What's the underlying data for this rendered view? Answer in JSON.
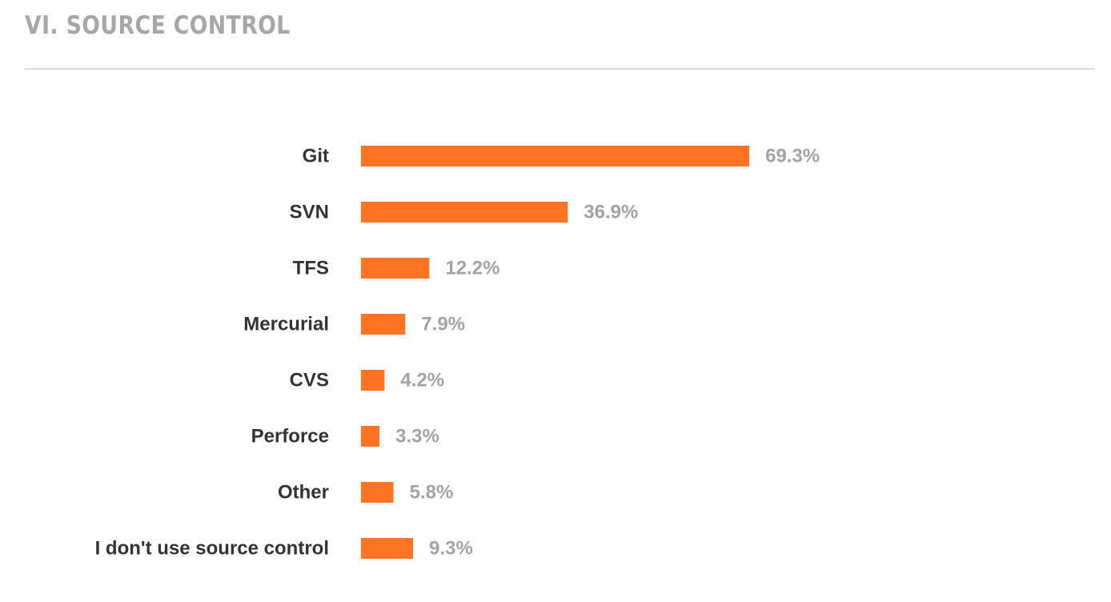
{
  "header": {
    "title": "VI. SOURCE CONTROL"
  },
  "colors": {
    "bar": "#ff7324",
    "category_text": "#333333",
    "value_text": "#a3a3a3",
    "title_text": "#a7a7a7",
    "divider": "#dcdcdc"
  },
  "chart_data": {
    "type": "bar",
    "orientation": "horizontal",
    "categories": [
      "Git",
      "SVN",
      "TFS",
      "Mercurial",
      "CVS",
      "Perforce",
      "Other",
      "I don't use source control"
    ],
    "values": [
      69.3,
      36.9,
      12.2,
      7.9,
      4.2,
      3.3,
      5.8,
      9.3
    ],
    "value_labels": [
      "69.3%",
      "36.9%",
      "12.2%",
      "7.9%",
      "4.2%",
      "3.3%",
      "5.8%",
      "9.3%"
    ],
    "unit": "%",
    "title": "VI. SOURCE CONTROL",
    "xlabel": "",
    "ylabel": "",
    "xlim": [
      0,
      100
    ],
    "grid": false,
    "legend": "none"
  }
}
